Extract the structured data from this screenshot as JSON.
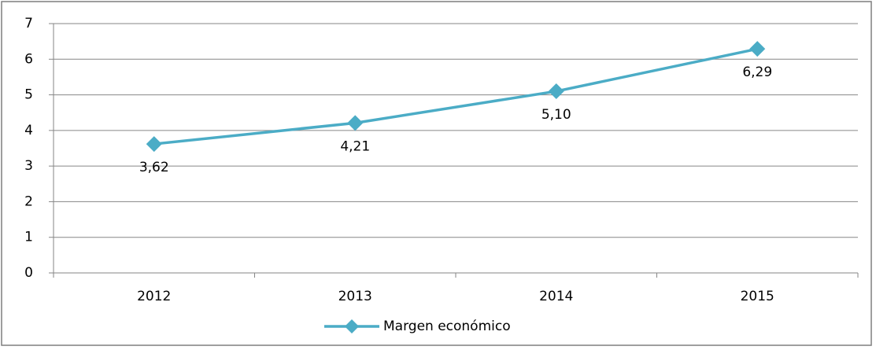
{
  "chart_data": {
    "type": "line",
    "categories": [
      "2012",
      "2013",
      "2014",
      "2015"
    ],
    "series": [
      {
        "name": "Margen económico",
        "color": "#4bacc6",
        "values": [
          3.62,
          4.21,
          5.1,
          6.29
        ],
        "value_labels": [
          "3,62",
          "4,21",
          "5,10",
          "6,29"
        ]
      }
    ],
    "ylim": [
      0,
      7
    ],
    "yticks": [
      0,
      1,
      2,
      3,
      4,
      5,
      6,
      7
    ],
    "grid": true,
    "legend": "bottom"
  }
}
